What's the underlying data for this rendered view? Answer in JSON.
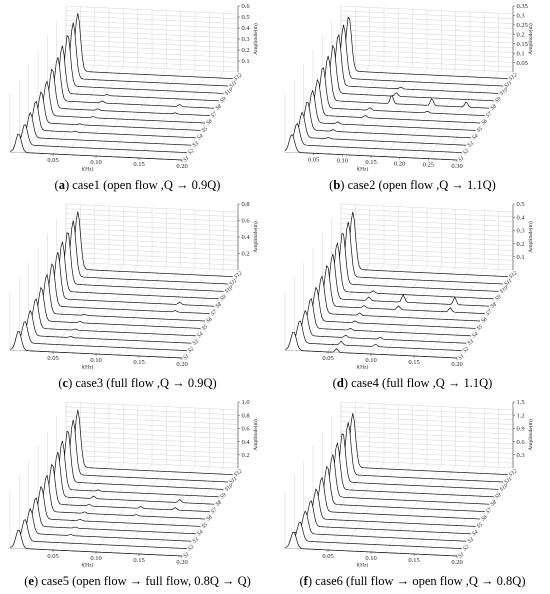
{
  "panels": [
    {
      "letter": "a",
      "text": " case1 (open flow ,Q → 0.9Q)",
      "chart_data": {
        "type": "line",
        "title": "",
        "xlabel": "f(Hz)",
        "ylabel": "Amplitude(m)",
        "xlim": [
          0,
          0.2
        ],
        "ylim": [
          0,
          0.6
        ],
        "xticks": [
          "0.05",
          "0.10",
          "0.15",
          "0.20"
        ],
        "yticks": [
          "0.1",
          "0.2",
          "0.3",
          "0.4",
          "0.5",
          "0.6"
        ],
        "section_labels": [
          "S1",
          "S2",
          "S3",
          "S4",
          "S5",
          "S6",
          "S7",
          "S8",
          "S9",
          "S10",
          "S11",
          "S12"
        ],
        "series": [
          {
            "label": "S1",
            "peak_x": 0.01,
            "peak_y": 0.18,
            "bumps": []
          },
          {
            "label": "S2",
            "peak_x": 0.012,
            "peak_y": 0.2,
            "bumps": []
          },
          {
            "label": "S3",
            "peak_x": 0.013,
            "peak_y": 0.24,
            "bumps": []
          },
          {
            "label": "S4",
            "peak_x": 0.014,
            "peak_y": 0.28,
            "bumps": [
              [
                0.06,
                0.01
              ]
            ]
          },
          {
            "label": "S5",
            "peak_x": 0.015,
            "peak_y": 0.3,
            "bumps": [
              [
                0.06,
                0.01
              ]
            ]
          },
          {
            "label": "S6",
            "peak_x": 0.016,
            "peak_y": 0.33,
            "bumps": [
              [
                0.07,
                0.012
              ]
            ]
          },
          {
            "label": "S7",
            "peak_x": 0.017,
            "peak_y": 0.38,
            "bumps": [
              [
                0.07,
                0.015
              ],
              [
                0.16,
                0.012
              ]
            ]
          },
          {
            "label": "S8",
            "peak_x": 0.018,
            "peak_y": 0.42,
            "bumps": [
              [
                0.07,
                0.02
              ],
              [
                0.16,
                0.02
              ]
            ]
          },
          {
            "label": "S9",
            "peak_x": 0.018,
            "peak_y": 0.46,
            "bumps": [
              [
                0.07,
                0.01
              ]
            ]
          },
          {
            "label": "S10",
            "peak_x": 0.019,
            "peak_y": 0.5,
            "bumps": []
          },
          {
            "label": "S11",
            "peak_x": 0.02,
            "peak_y": 0.54,
            "bumps": []
          },
          {
            "label": "S12",
            "peak_x": 0.02,
            "peak_y": 0.56,
            "bumps": []
          }
        ]
      }
    },
    {
      "letter": "b",
      "text": " case2 (open flow ,Q → 1.1Q)",
      "chart_data": {
        "type": "line",
        "title": "",
        "xlabel": "f(Hz)",
        "ylabel": "Amplitude(m)",
        "xlim": [
          0,
          0.3
        ],
        "ylim": [
          0,
          0.35
        ],
        "xticks": [
          "0.05",
          "0.10",
          "0.15",
          "0.20",
          "0.25",
          "0.30"
        ],
        "yticks": [
          "0.05",
          "0.1",
          "0.15",
          "0.2",
          "0.25",
          "0.3",
          "0.35"
        ],
        "section_labels": [
          "S1",
          "S2",
          "S3",
          "S4",
          "S5",
          "S6",
          "S7",
          "S8",
          "S9",
          "S10",
          "S11",
          "S12"
        ],
        "series": [
          {
            "label": "S1",
            "peak_x": 0.012,
            "peak_y": 0.1,
            "bumps": []
          },
          {
            "label": "S2",
            "peak_x": 0.013,
            "peak_y": 0.12,
            "bumps": []
          },
          {
            "label": "S3",
            "peak_x": 0.014,
            "peak_y": 0.14,
            "bumps": [
              [
                0.06,
                0.008
              ]
            ]
          },
          {
            "label": "S4",
            "peak_x": 0.015,
            "peak_y": 0.16,
            "bumps": [
              [
                0.06,
                0.01
              ]
            ]
          },
          {
            "label": "S5",
            "peak_x": 0.016,
            "peak_y": 0.18,
            "bumps": [
              [
                0.06,
                0.012
              ]
            ]
          },
          {
            "label": "S6",
            "peak_x": 0.017,
            "peak_y": 0.2,
            "bumps": [
              [
                0.1,
                0.012
              ]
            ]
          },
          {
            "label": "S7",
            "peak_x": 0.018,
            "peak_y": 0.23,
            "bumps": [
              [
                0.1,
                0.015
              ],
              [
                0.2,
                0.01
              ]
            ]
          },
          {
            "label": "S8",
            "peak_x": 0.019,
            "peak_y": 0.25,
            "bumps": [
              [
                0.13,
                0.05
              ],
              [
                0.2,
                0.04
              ],
              [
                0.26,
                0.03
              ]
            ]
          },
          {
            "label": "S9",
            "peak_x": 0.02,
            "peak_y": 0.27,
            "bumps": [
              [
                0.13,
                0.02
              ]
            ]
          },
          {
            "label": "S10",
            "peak_x": 0.021,
            "peak_y": 0.29,
            "bumps": [
              [
                0.13,
                0.01
              ]
            ]
          },
          {
            "label": "S11",
            "peak_x": 0.022,
            "peak_y": 0.3,
            "bumps": []
          },
          {
            "label": "S12",
            "peak_x": 0.023,
            "peak_y": 0.31,
            "bumps": []
          }
        ]
      }
    },
    {
      "letter": "c",
      "text": " case3 (full flow ,Q → 0.9Q)",
      "chart_data": {
        "type": "line",
        "title": "",
        "xlabel": "f(Hz)",
        "ylabel": "Amplitude(m)",
        "xlim": [
          0,
          0.2
        ],
        "ylim": [
          0,
          0.8
        ],
        "xticks": [
          "0.05",
          "0.10",
          "0.15",
          "0.20"
        ],
        "yticks": [
          "0.2",
          "0.4",
          "0.6",
          "0.8"
        ],
        "section_labels": [
          "S1",
          "S2",
          "S3",
          "S4",
          "S5",
          "S6",
          "S7",
          "S8",
          "S9",
          "S10",
          "S11",
          "S12"
        ],
        "series": [
          {
            "label": "S1",
            "peak_x": 0.01,
            "peak_y": 0.25,
            "bumps": []
          },
          {
            "label": "S2",
            "peak_x": 0.012,
            "peak_y": 0.28,
            "bumps": []
          },
          {
            "label": "S3",
            "peak_x": 0.013,
            "peak_y": 0.32,
            "bumps": [
              [
                0.06,
                0.015
              ]
            ]
          },
          {
            "label": "S4",
            "peak_x": 0.014,
            "peak_y": 0.38,
            "bumps": [
              [
                0.06,
                0.015
              ]
            ]
          },
          {
            "label": "S5",
            "peak_x": 0.015,
            "peak_y": 0.43,
            "bumps": [
              [
                0.06,
                0.02
              ]
            ]
          },
          {
            "label": "S6",
            "peak_x": 0.016,
            "peak_y": 0.5,
            "bumps": [
              [
                0.06,
                0.015
              ]
            ]
          },
          {
            "label": "S7",
            "peak_x": 0.017,
            "peak_y": 0.55,
            "bumps": [
              [
                0.16,
                0.02
              ]
            ]
          },
          {
            "label": "S8",
            "peak_x": 0.018,
            "peak_y": 0.6,
            "bumps": [
              [
                0.16,
                0.03
              ]
            ]
          },
          {
            "label": "S9",
            "peak_x": 0.018,
            "peak_y": 0.64,
            "bumps": []
          },
          {
            "label": "S10",
            "peak_x": 0.019,
            "peak_y": 0.68,
            "bumps": []
          },
          {
            "label": "S11",
            "peak_x": 0.02,
            "peak_y": 0.72,
            "bumps": []
          },
          {
            "label": "S12",
            "peak_x": 0.02,
            "peak_y": 0.74,
            "bumps": []
          }
        ]
      }
    },
    {
      "letter": "d",
      "text": " case4 (full flow ,Q → 1.1Q)",
      "chart_data": {
        "type": "line",
        "title": "",
        "xlabel": "f(Hz)",
        "ylabel": "Amplitude(m)",
        "xlim": [
          0,
          0.2
        ],
        "ylim": [
          0,
          0.5
        ],
        "xticks": [
          "0.05",
          "0.10",
          "0.15",
          "0.20"
        ],
        "yticks": [
          "0.1",
          "0.2",
          "0.3",
          "0.4",
          "0.5"
        ],
        "section_labels": [
          "S1",
          "S2",
          "S3",
          "S4",
          "S5",
          "S6",
          "S7",
          "S8",
          "S9",
          "S10",
          "S11",
          "S12"
        ],
        "series": [
          {
            "label": "S1",
            "peak_x": 0.01,
            "peak_y": 0.15,
            "bumps": [
              [
                0.06,
                0.03
              ]
            ]
          },
          {
            "label": "S2",
            "peak_x": 0.012,
            "peak_y": 0.18,
            "bumps": [
              [
                0.06,
                0.03
              ],
              [
                0.1,
                0.02
              ]
            ]
          },
          {
            "label": "S3",
            "peak_x": 0.013,
            "peak_y": 0.2,
            "bumps": [
              [
                0.06,
                0.02
              ],
              [
                0.1,
                0.015
              ]
            ]
          },
          {
            "label": "S4",
            "peak_x": 0.014,
            "peak_y": 0.24,
            "bumps": [
              [
                0.06,
                0.015
              ]
            ]
          },
          {
            "label": "S5",
            "peak_x": 0.015,
            "peak_y": 0.27,
            "bumps": [
              [
                0.06,
                0.015
              ]
            ]
          },
          {
            "label": "S6",
            "peak_x": 0.016,
            "peak_y": 0.3,
            "bumps": [
              [
                0.06,
                0.02
              ]
            ]
          },
          {
            "label": "S7",
            "peak_x": 0.017,
            "peak_y": 0.33,
            "bumps": [
              [
                0.06,
                0.02
              ],
              [
                0.1,
                0.03
              ],
              [
                0.16,
                0.035
              ]
            ]
          },
          {
            "label": "S8",
            "peak_x": 0.018,
            "peak_y": 0.36,
            "bumps": [
              [
                0.06,
                0.03
              ],
              [
                0.1,
                0.06
              ],
              [
                0.16,
                0.06
              ]
            ]
          },
          {
            "label": "S9",
            "peak_x": 0.018,
            "peak_y": 0.39,
            "bumps": [
              [
                0.06,
                0.02
              ]
            ]
          },
          {
            "label": "S10",
            "peak_x": 0.019,
            "peak_y": 0.42,
            "bumps": []
          },
          {
            "label": "S11",
            "peak_x": 0.02,
            "peak_y": 0.44,
            "bumps": []
          },
          {
            "label": "S12",
            "peak_x": 0.02,
            "peak_y": 0.46,
            "bumps": []
          }
        ]
      }
    },
    {
      "letter": "e",
      "text": " case5 (open flow → full flow, 0.8Q → Q)",
      "chart_data": {
        "type": "line",
        "title": "",
        "xlabel": "f(Hz)",
        "ylabel": "Amplitude(m)",
        "xlim": [
          0,
          0.2
        ],
        "ylim": [
          0,
          1.0
        ],
        "xticks": [
          "0.05",
          "0.10",
          "0.15",
          "0.20"
        ],
        "yticks": [
          "0.2",
          "0.4",
          "0.6",
          "0.8",
          "1.0"
        ],
        "section_labels": [
          "S1",
          "S2",
          "S3",
          "S4",
          "S5",
          "S6",
          "S7",
          "S8",
          "S9",
          "S10",
          "S11",
          "S12"
        ],
        "series": [
          {
            "label": "S1",
            "peak_x": 0.01,
            "peak_y": 0.3,
            "bumps": []
          },
          {
            "label": "S2",
            "peak_x": 0.012,
            "peak_y": 0.35,
            "bumps": []
          },
          {
            "label": "S3",
            "peak_x": 0.013,
            "peak_y": 0.4,
            "bumps": [
              [
                0.06,
                0.02
              ]
            ]
          },
          {
            "label": "S4",
            "peak_x": 0.014,
            "peak_y": 0.46,
            "bumps": [
              [
                0.06,
                0.02
              ]
            ]
          },
          {
            "label": "S5",
            "peak_x": 0.015,
            "peak_y": 0.52,
            "bumps": [
              [
                0.06,
                0.025
              ]
            ]
          },
          {
            "label": "S6",
            "peak_x": 0.016,
            "peak_y": 0.58,
            "bumps": [
              [
                0.06,
                0.025
              ],
              [
                0.12,
                0.02
              ]
            ]
          },
          {
            "label": "S7",
            "peak_x": 0.017,
            "peak_y": 0.65,
            "bumps": [
              [
                0.06,
                0.03
              ],
              [
                0.12,
                0.03
              ],
              [
                0.16,
                0.04
              ]
            ]
          },
          {
            "label": "S8",
            "peak_x": 0.018,
            "peak_y": 0.72,
            "bumps": [
              [
                0.06,
                0.04
              ],
              [
                0.16,
                0.05
              ]
            ]
          },
          {
            "label": "S9",
            "peak_x": 0.018,
            "peak_y": 0.78,
            "bumps": [
              [
                0.06,
                0.02
              ]
            ]
          },
          {
            "label": "S10",
            "peak_x": 0.019,
            "peak_y": 0.84,
            "bumps": []
          },
          {
            "label": "S11",
            "peak_x": 0.02,
            "peak_y": 0.88,
            "bumps": []
          },
          {
            "label": "S12",
            "peak_x": 0.02,
            "peak_y": 0.92,
            "bumps": []
          }
        ]
      }
    },
    {
      "letter": "f",
      "text": " case6 (full flow → open flow ,Q → 0.8Q)",
      "chart_data": {
        "type": "line",
        "title": "",
        "xlabel": "f(Hz)",
        "ylabel": "Amplitude(m)",
        "xlim": [
          0,
          0.2
        ],
        "ylim": [
          0,
          1.5
        ],
        "xticks": [
          "0.05",
          "0.10",
          "0.15",
          "0.20"
        ],
        "yticks": [
          "0.3",
          "0.6",
          "0.9",
          "1.2",
          "1.5"
        ],
        "section_labels": [
          "S1",
          "S2",
          "S3",
          "S4",
          "S5",
          "S6",
          "S7",
          "S8",
          "S9",
          "S10",
          "S11",
          "S12"
        ],
        "series": [
          {
            "label": "S1",
            "peak_x": 0.01,
            "peak_y": 0.4,
            "bumps": []
          },
          {
            "label": "S2",
            "peak_x": 0.012,
            "peak_y": 0.46,
            "bumps": []
          },
          {
            "label": "S3",
            "peak_x": 0.013,
            "peak_y": 0.54,
            "bumps": []
          },
          {
            "label": "S4",
            "peak_x": 0.014,
            "peak_y": 0.62,
            "bumps": []
          },
          {
            "label": "S5",
            "peak_x": 0.015,
            "peak_y": 0.72,
            "bumps": []
          },
          {
            "label": "S6",
            "peak_x": 0.016,
            "peak_y": 0.82,
            "bumps": []
          },
          {
            "label": "S7",
            "peak_x": 0.017,
            "peak_y": 0.92,
            "bumps": []
          },
          {
            "label": "S8",
            "peak_x": 0.018,
            "peak_y": 1.02,
            "bumps": []
          },
          {
            "label": "S9",
            "peak_x": 0.018,
            "peak_y": 1.12,
            "bumps": []
          },
          {
            "label": "S10",
            "peak_x": 0.019,
            "peak_y": 1.2,
            "bumps": []
          },
          {
            "label": "S11",
            "peak_x": 0.02,
            "peak_y": 1.26,
            "bumps": []
          },
          {
            "label": "S12",
            "peak_x": 0.02,
            "peak_y": 1.3,
            "bumps": []
          }
        ]
      }
    }
  ]
}
